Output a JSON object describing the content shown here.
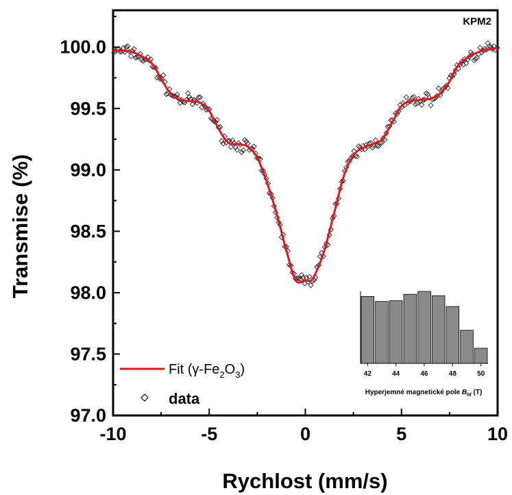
{
  "chart_data": {
    "type": "scatter",
    "corner_label": "KPM2",
    "xlabel": "Rychlost (mm/s)",
    "ylabel": "Transmise (%)",
    "xlim": [
      -10,
      10
    ],
    "ylim": [
      97.0,
      100.3
    ],
    "x_ticks": [
      "-10",
      "-5",
      "0",
      "5",
      "10"
    ],
    "y_ticks": [
      "97.0",
      "97.5",
      "98.0",
      "98.5",
      "99.0",
      "99.5",
      "100.0"
    ],
    "legend": {
      "placement": "bottom-left",
      "fit_label_prefix": "Fit (γ-Fe",
      "fit_sub1": "2",
      "fit_mid": "O",
      "fit_sub2": "3",
      "fit_suffix": ")",
      "data_label": "data"
    },
    "series": [
      {
        "kind": "fit",
        "color": "#e8141c",
        "x": [
          -10.0,
          -9.0,
          -8.0,
          -7.5,
          -7.0,
          -6.5,
          -6.0,
          -5.5,
          -5.0,
          -4.5,
          -4.0,
          -3.5,
          -3.0,
          -2.5,
          -2.0,
          -1.5,
          -1.0,
          -0.5,
          0.0,
          0.3,
          0.6,
          1.0,
          1.5,
          2.0,
          2.5,
          3.0,
          3.5,
          4.0,
          4.5,
          5.0,
          5.5,
          6.0,
          6.5,
          7.0,
          7.5,
          8.0,
          9.0,
          10.0
        ],
        "y": [
          99.97,
          99.96,
          99.87,
          99.74,
          99.62,
          99.57,
          99.56,
          99.55,
          99.48,
          99.33,
          99.22,
          99.21,
          99.19,
          99.1,
          98.9,
          98.65,
          98.35,
          98.1,
          98.1,
          98.1,
          98.18,
          98.35,
          98.65,
          98.95,
          99.12,
          99.18,
          99.21,
          99.25,
          99.38,
          99.52,
          99.56,
          99.57,
          99.58,
          99.62,
          99.72,
          99.86,
          99.96,
          99.99
        ]
      },
      {
        "kind": "data",
        "marker": "open-diamond",
        "noise": 0.025,
        "x_step": 0.08
      }
    ],
    "inset": {
      "type": "bar",
      "xlabel_prefix": "Hyperjemné magnetické pole ",
      "xlabel_var": "B",
      "xlabel_sub": "hf",
      "xlabel_suffix": " (T)",
      "x_ticks": [
        "42",
        "44",
        "46",
        "48",
        "50"
      ],
      "bar_color": "#8a8a8a",
      "categories": [
        42,
        43,
        44,
        45,
        46,
        47,
        48,
        49,
        50
      ],
      "values": [
        0.93,
        0.86,
        0.87,
        0.96,
        1.0,
        0.94,
        0.79,
        0.46,
        0.21
      ]
    }
  }
}
